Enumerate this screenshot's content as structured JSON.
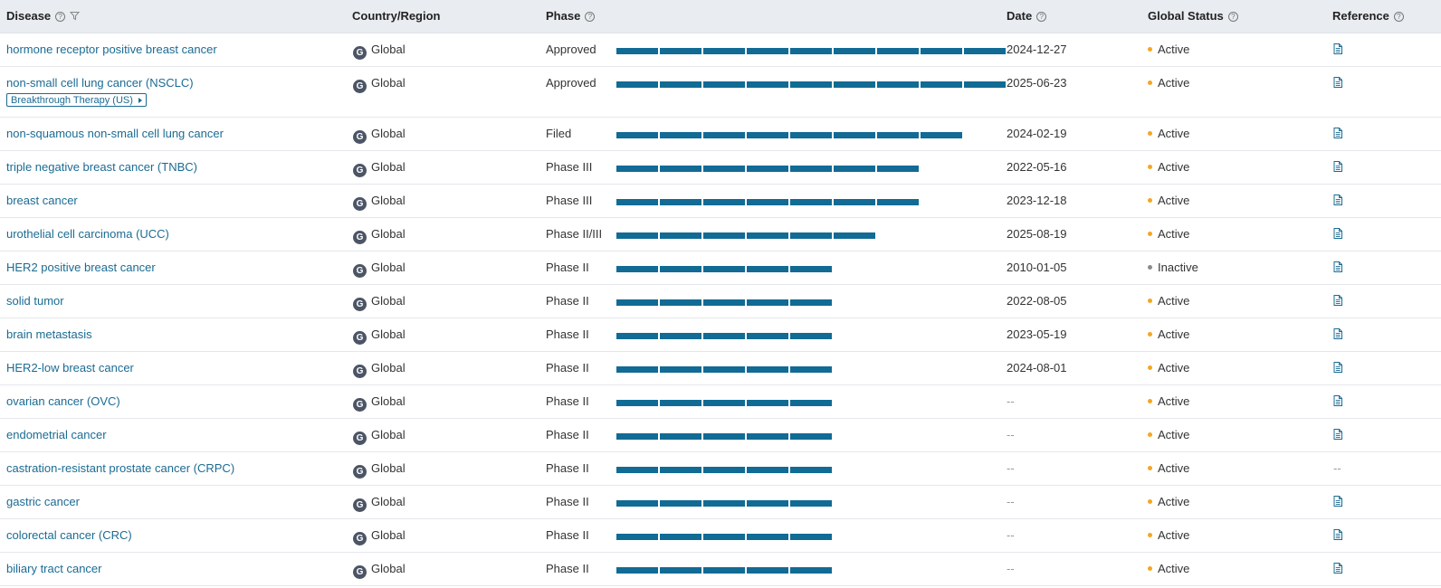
{
  "columns": {
    "disease": "Disease",
    "country": "Country/Region",
    "phase": "Phase",
    "date": "Date",
    "status": "Global Status",
    "reference": "Reference"
  },
  "colors": {
    "bar": "#116b95",
    "active": "#f5a623",
    "inactive": "#8c8c8c",
    "link": "#1b6b93"
  },
  "globe_letter": "G",
  "rows": [
    {
      "disease": "hormone receptor positive breast cancer",
      "country": "Global",
      "phase": "Approved",
      "level": 9,
      "date": "2024-12-27",
      "status": "Active",
      "reference": true
    },
    {
      "disease": "non-small cell lung cancer (NSCLC)",
      "tag": "Breakthrough Therapy (US)",
      "country": "Global",
      "phase": "Approved",
      "level": 9,
      "date": "2025-06-23",
      "status": "Active",
      "reference": true
    },
    {
      "disease": "non-squamous non-small cell lung cancer",
      "country": "Global",
      "phase": "Filed",
      "level": 8,
      "date": "2024-02-19",
      "status": "Active",
      "reference": true
    },
    {
      "disease": "triple negative breast cancer (TNBC)",
      "country": "Global",
      "phase": "Phase III",
      "level": 7,
      "date": "2022-05-16",
      "status": "Active",
      "reference": true
    },
    {
      "disease": "breast cancer",
      "country": "Global",
      "phase": "Phase III",
      "level": 7,
      "date": "2023-12-18",
      "status": "Active",
      "reference": true
    },
    {
      "disease": "urothelial cell carcinoma (UCC)",
      "country": "Global",
      "phase": "Phase II/III",
      "level": 6,
      "date": "2025-08-19",
      "status": "Active",
      "reference": true
    },
    {
      "disease": "HER2 positive breast cancer",
      "country": "Global",
      "phase": "Phase II",
      "level": 5,
      "date": "2010-01-05",
      "status": "Inactive",
      "reference": true
    },
    {
      "disease": "solid tumor",
      "country": "Global",
      "phase": "Phase II",
      "level": 5,
      "date": "2022-08-05",
      "status": "Active",
      "reference": true
    },
    {
      "disease": "brain metastasis",
      "country": "Global",
      "phase": "Phase II",
      "level": 5,
      "date": "2023-05-19",
      "status": "Active",
      "reference": true
    },
    {
      "disease": "HER2-low breast cancer",
      "country": "Global",
      "phase": "Phase II",
      "level": 5,
      "date": "2024-08-01",
      "status": "Active",
      "reference": true
    },
    {
      "disease": "ovarian cancer (OVC)",
      "country": "Global",
      "phase": "Phase II",
      "level": 5,
      "date": "--",
      "status": "Active",
      "reference": true
    },
    {
      "disease": "endometrial cancer",
      "country": "Global",
      "phase": "Phase II",
      "level": 5,
      "date": "--",
      "status": "Active",
      "reference": true
    },
    {
      "disease": "castration-resistant prostate cancer (CRPC)",
      "country": "Global",
      "phase": "Phase II",
      "level": 5,
      "date": "--",
      "status": "Active",
      "reference": false,
      "reference_text": "--"
    },
    {
      "disease": "gastric cancer",
      "country": "Global",
      "phase": "Phase II",
      "level": 5,
      "date": "--",
      "status": "Active",
      "reference": true
    },
    {
      "disease": "colorectal cancer (CRC)",
      "country": "Global",
      "phase": "Phase II",
      "level": 5,
      "date": "--",
      "status": "Active",
      "reference": true
    },
    {
      "disease": "biliary tract cancer",
      "country": "Global",
      "phase": "Phase II",
      "level": 5,
      "date": "--",
      "status": "Active",
      "reference": true
    }
  ]
}
